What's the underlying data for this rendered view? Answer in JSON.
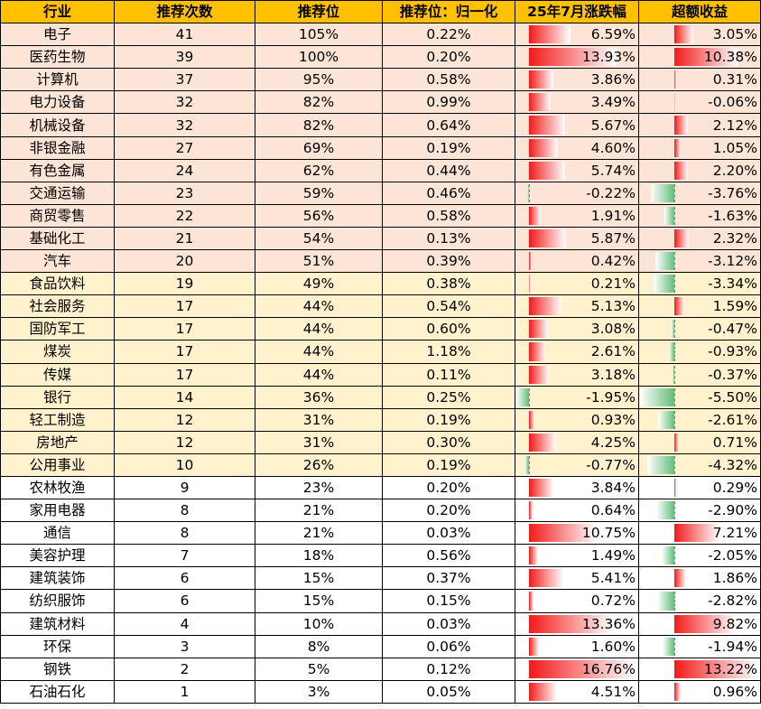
{
  "table": {
    "headers": [
      "行业",
      "推荐次数",
      "推荐位",
      "推荐位：归一化",
      "25年7月涨跌幅",
      "超额收益"
    ],
    "colors": {
      "header": "#ffc000",
      "group_top": "#fce4d6",
      "group_mid": "#fff2cc",
      "group_rest": "#ffffff",
      "positive_bar": "#f21a1a",
      "negative_bar": "#63be7b"
    },
    "rows": [
      {
        "industry": "电子",
        "count": "41",
        "position": "105%",
        "normalized": "0.22%",
        "july": "6.59%",
        "excess": "3.05%",
        "july_v": 6.59,
        "excess_v": 3.05,
        "group": "g1"
      },
      {
        "industry": "医药生物",
        "count": "39",
        "position": "100%",
        "normalized": "0.20%",
        "july": "13.93%",
        "excess": "10.38%",
        "july_v": 13.93,
        "excess_v": 10.38,
        "group": "g1"
      },
      {
        "industry": "计算机",
        "count": "37",
        "position": "95%",
        "normalized": "0.58%",
        "july": "3.86%",
        "excess": "0.31%",
        "july_v": 3.86,
        "excess_v": 0.31,
        "group": "g1"
      },
      {
        "industry": "电力设备",
        "count": "32",
        "position": "82%",
        "normalized": "0.99%",
        "july": "3.49%",
        "excess": "-0.06%",
        "july_v": 3.49,
        "excess_v": -0.06,
        "group": "g1"
      },
      {
        "industry": "机械设备",
        "count": "32",
        "position": "82%",
        "normalized": "0.64%",
        "july": "5.67%",
        "excess": "2.12%",
        "july_v": 5.67,
        "excess_v": 2.12,
        "group": "g1"
      },
      {
        "industry": "非银金融",
        "count": "27",
        "position": "69%",
        "normalized": "0.19%",
        "july": "4.60%",
        "excess": "1.05%",
        "july_v": 4.6,
        "excess_v": 1.05,
        "group": "g1"
      },
      {
        "industry": "有色金属",
        "count": "24",
        "position": "62%",
        "normalized": "0.44%",
        "july": "5.74%",
        "excess": "2.20%",
        "july_v": 5.74,
        "excess_v": 2.2,
        "group": "g1"
      },
      {
        "industry": "交通运输",
        "count": "23",
        "position": "59%",
        "normalized": "0.46%",
        "july": "-0.22%",
        "excess": "-3.76%",
        "july_v": -0.22,
        "excess_v": -3.76,
        "group": "g1"
      },
      {
        "industry": "商贸零售",
        "count": "22",
        "position": "56%",
        "normalized": "0.58%",
        "july": "1.91%",
        "excess": "-1.63%",
        "july_v": 1.91,
        "excess_v": -1.63,
        "group": "g1"
      },
      {
        "industry": "基础化工",
        "count": "21",
        "position": "54%",
        "normalized": "0.13%",
        "july": "5.87%",
        "excess": "2.32%",
        "july_v": 5.87,
        "excess_v": 2.32,
        "group": "g1"
      },
      {
        "industry": "汽车",
        "count": "20",
        "position": "51%",
        "normalized": "0.39%",
        "july": "0.42%",
        "excess": "-3.12%",
        "july_v": 0.42,
        "excess_v": -3.12,
        "group": "g1"
      },
      {
        "industry": "食品饮料",
        "count": "19",
        "position": "49%",
        "normalized": "0.38%",
        "july": "0.21%",
        "excess": "-3.34%",
        "july_v": 0.21,
        "excess_v": -3.34,
        "group": "g2"
      },
      {
        "industry": "社会服务",
        "count": "17",
        "position": "44%",
        "normalized": "0.54%",
        "july": "5.13%",
        "excess": "1.59%",
        "july_v": 5.13,
        "excess_v": 1.59,
        "group": "g2"
      },
      {
        "industry": "国防军工",
        "count": "17",
        "position": "44%",
        "normalized": "0.60%",
        "july": "3.08%",
        "excess": "-0.47%",
        "july_v": 3.08,
        "excess_v": -0.47,
        "group": "g2"
      },
      {
        "industry": "煤炭",
        "count": "17",
        "position": "44%",
        "normalized": "1.18%",
        "july": "2.61%",
        "excess": "-0.93%",
        "july_v": 2.61,
        "excess_v": -0.93,
        "group": "g2"
      },
      {
        "industry": "传媒",
        "count": "17",
        "position": "44%",
        "normalized": "0.11%",
        "july": "3.18%",
        "excess": "-0.37%",
        "july_v": 3.18,
        "excess_v": -0.37,
        "group": "g2"
      },
      {
        "industry": "银行",
        "count": "14",
        "position": "36%",
        "normalized": "0.25%",
        "july": "-1.95%",
        "excess": "-5.50%",
        "july_v": -1.95,
        "excess_v": -5.5,
        "group": "g2"
      },
      {
        "industry": "轻工制造",
        "count": "12",
        "position": "31%",
        "normalized": "0.19%",
        "july": "0.93%",
        "excess": "-2.61%",
        "july_v": 0.93,
        "excess_v": -2.61,
        "group": "g2"
      },
      {
        "industry": "房地产",
        "count": "12",
        "position": "31%",
        "normalized": "0.30%",
        "july": "4.25%",
        "excess": "0.71%",
        "july_v": 4.25,
        "excess_v": 0.71,
        "group": "g2"
      },
      {
        "industry": "公用事业",
        "count": "10",
        "position": "26%",
        "normalized": "0.19%",
        "july": "-0.77%",
        "excess": "-4.32%",
        "july_v": -0.77,
        "excess_v": -4.32,
        "group": "g2"
      },
      {
        "industry": "农林牧渔",
        "count": "9",
        "position": "23%",
        "normalized": "0.20%",
        "july": "3.84%",
        "excess": "0.29%",
        "july_v": 3.84,
        "excess_v": 0.29,
        "group": "g3"
      },
      {
        "industry": "家用电器",
        "count": "8",
        "position": "21%",
        "normalized": "0.20%",
        "july": "0.64%",
        "excess": "-2.90%",
        "july_v": 0.64,
        "excess_v": -2.9,
        "group": "g3"
      },
      {
        "industry": "通信",
        "count": "8",
        "position": "21%",
        "normalized": "0.03%",
        "july": "10.75%",
        "excess": "7.21%",
        "july_v": 10.75,
        "excess_v": 7.21,
        "group": "g3"
      },
      {
        "industry": "美容护理",
        "count": "7",
        "position": "18%",
        "normalized": "0.56%",
        "july": "1.49%",
        "excess": "-2.05%",
        "july_v": 1.49,
        "excess_v": -2.05,
        "group": "g3"
      },
      {
        "industry": "建筑装饰",
        "count": "6",
        "position": "15%",
        "normalized": "0.37%",
        "july": "5.41%",
        "excess": "1.86%",
        "july_v": 5.41,
        "excess_v": 1.86,
        "group": "g3"
      },
      {
        "industry": "纺织服饰",
        "count": "6",
        "position": "15%",
        "normalized": "0.15%",
        "july": "0.72%",
        "excess": "-2.82%",
        "july_v": 0.72,
        "excess_v": -2.82,
        "group": "g3"
      },
      {
        "industry": "建筑材料",
        "count": "4",
        "position": "10%",
        "normalized": "0.03%",
        "july": "13.36%",
        "excess": "9.82%",
        "july_v": 13.36,
        "excess_v": 9.82,
        "group": "g3"
      },
      {
        "industry": "环保",
        "count": "3",
        "position": "8%",
        "normalized": "0.06%",
        "july": "1.60%",
        "excess": "-1.94%",
        "july_v": 1.6,
        "excess_v": -1.94,
        "group": "g3"
      },
      {
        "industry": "钢铁",
        "count": "2",
        "position": "5%",
        "normalized": "0.12%",
        "july": "16.76%",
        "excess": "13.22%",
        "july_v": 16.76,
        "excess_v": 13.22,
        "group": "g3"
      },
      {
        "industry": "石油石化",
        "count": "1",
        "position": "3%",
        "normalized": "0.05%",
        "july": "4.51%",
        "excess": "0.96%",
        "july_v": 4.51,
        "excess_v": 0.96,
        "group": "g3"
      }
    ]
  }
}
